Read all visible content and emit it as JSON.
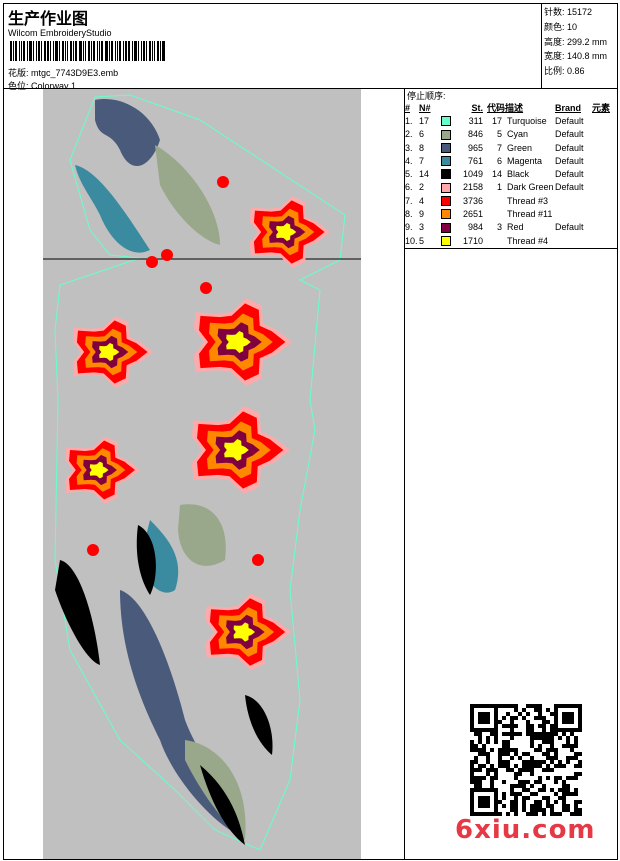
{
  "header": {
    "title": "生产作业图",
    "software": "Wilcom EmbroideryStudio",
    "design_label": "花版:",
    "design_value": "mtgc_7743D9E3.emb",
    "colorway_label": "色位:",
    "colorway_value": "Colorway 1"
  },
  "info": [
    {
      "label": "针数:",
      "value": "15172"
    },
    {
      "label": "颜色:",
      "value": "10"
    },
    {
      "label": "高度:",
      "value": "299.2 mm"
    },
    {
      "label": "宽度:",
      "value": "140.8 mm"
    },
    {
      "label": "比例:",
      "value": "0.86"
    }
  ],
  "stop_sequence": {
    "title": "停止顺序:",
    "columns": [
      "#",
      "N#",
      "",
      "St.",
      "代码",
      "描述",
      "Brand",
      "元素"
    ],
    "rows": [
      {
        "idx": "1.",
        "n": "17",
        "color": "#66ffcc",
        "st": "311",
        "code": "17",
        "desc": "Turquoise",
        "brand": "Default"
      },
      {
        "idx": "2.",
        "n": "6",
        "color": "#99a88a",
        "st": "846",
        "code": "5",
        "desc": "Cyan",
        "brand": "Default"
      },
      {
        "idx": "3.",
        "n": "8",
        "color": "#4a5a7a",
        "st": "965",
        "code": "7",
        "desc": "Green",
        "brand": "Default"
      },
      {
        "idx": "4.",
        "n": "7",
        "color": "#3a8aa0",
        "st": "761",
        "code": "6",
        "desc": "Magenta",
        "brand": "Default"
      },
      {
        "idx": "5.",
        "n": "14",
        "color": "#000000",
        "st": "1049",
        "code": "14",
        "desc": "Black",
        "brand": "Default"
      },
      {
        "idx": "6.",
        "n": "2",
        "color": "#ffaaaa",
        "st": "2158",
        "code": "1",
        "desc": "Dark Green",
        "brand": "Default"
      },
      {
        "idx": "7.",
        "n": "4",
        "color": "#ff0000",
        "st": "3736",
        "code": "",
        "desc": "Thread #3",
        "brand": ""
      },
      {
        "idx": "8.",
        "n": "9",
        "color": "#ff8800",
        "st": "2651",
        "code": "",
        "desc": "Thread #11",
        "brand": ""
      },
      {
        "idx": "9.",
        "n": "3",
        "color": "#800040",
        "st": "984",
        "code": "3",
        "desc": "Red",
        "brand": "Default"
      },
      {
        "idx": "10.",
        "n": "5",
        "color": "#ffff00",
        "st": "1710",
        "code": "",
        "desc": "Thread #4",
        "brand": ""
      }
    ]
  },
  "watermark": "6xiu.com"
}
